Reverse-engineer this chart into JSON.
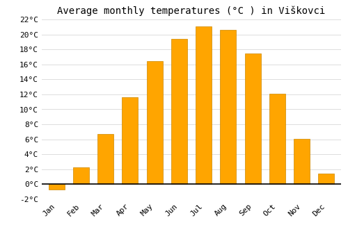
{
  "title": "Average monthly temperatures (°C ) in Viškovci",
  "months": [
    "Jan",
    "Feb",
    "Mar",
    "Apr",
    "May",
    "Jun",
    "Jul",
    "Aug",
    "Sep",
    "Oct",
    "Nov",
    "Dec"
  ],
  "values": [
    -0.7,
    2.3,
    6.7,
    11.6,
    16.4,
    19.4,
    21.1,
    20.6,
    17.5,
    12.1,
    6.1,
    1.4
  ],
  "bar_color": "#FFA500",
  "bar_edge_color": "#CC8800",
  "ylim": [
    -2,
    22
  ],
  "yticks": [
    -2,
    0,
    2,
    4,
    6,
    8,
    10,
    12,
    14,
    16,
    18,
    20,
    22
  ],
  "ytick_labels": [
    "-2°C",
    "0°C",
    "2°C",
    "4°C",
    "6°C",
    "8°C",
    "10°C",
    "12°C",
    "14°C",
    "16°C",
    "18°C",
    "20°C",
    "22°C"
  ],
  "background_color": "#ffffff",
  "grid_color": "#dddddd",
  "title_fontsize": 10,
  "tick_fontsize": 8,
  "font_family": "monospace"
}
